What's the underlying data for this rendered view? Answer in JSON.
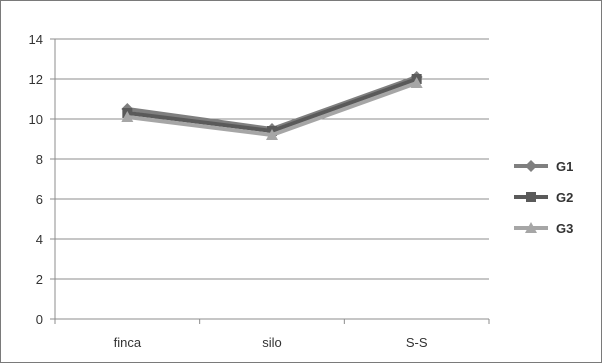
{
  "chart_data": {
    "type": "line",
    "title": "",
    "xlabel": "",
    "ylabel": "",
    "categories": [
      "finca",
      "silo",
      "S-S"
    ],
    "ylim": [
      0,
      14
    ],
    "yticks": [
      0,
      2,
      4,
      6,
      8,
      10,
      12,
      14
    ],
    "grid": "horizontal",
    "legend_position": "right",
    "series": [
      {
        "name": "G1",
        "values": [
          10.5,
          9.5,
          12.1
        ],
        "color": "#7f7f7f",
        "marker": "diamond"
      },
      {
        "name": "G2",
        "values": [
          10.3,
          9.4,
          12.0
        ],
        "color": "#5a5a5a",
        "marker": "square"
      },
      {
        "name": "G3",
        "values": [
          10.1,
          9.2,
          11.8
        ],
        "color": "#a6a6a6",
        "marker": "triangle"
      }
    ]
  }
}
